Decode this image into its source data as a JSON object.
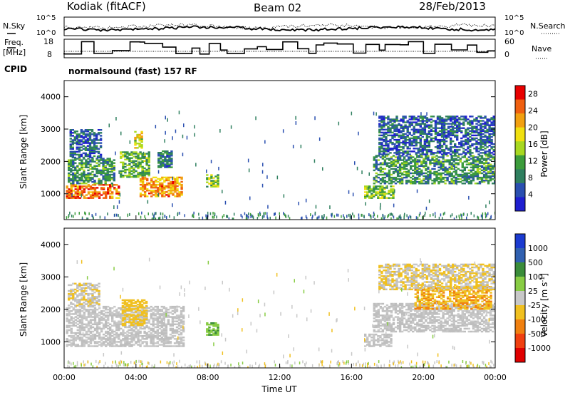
{
  "header": {
    "station": "Kodiak (fitACF)",
    "beam": "Beam 02",
    "date": "28/Feb/2013",
    "cpid_label": "CPID",
    "cpid_value": "normalsound (fast) 157 RF"
  },
  "status_panels": {
    "noise": {
      "left_label": "N.Sky",
      "right_label": "N.Search",
      "left_ticks": [
        "10^5",
        "10^0"
      ],
      "right_ticks": [
        "10^5",
        "10^0"
      ]
    },
    "freq": {
      "left_label_top": "Freq.",
      "left_label_unit": "[MHz]",
      "right_label": "Nave",
      "left_ticks": [
        "18",
        "8"
      ],
      "right_ticks": [
        "60",
        "0"
      ]
    }
  },
  "colors": {
    "power_scale": [
      "#1f1fd0",
      "#2a4fb0",
      "#2f7f5f",
      "#3c9c3c",
      "#a8d820",
      "#f0e010",
      "#f2a010",
      "#f06010",
      "#e80000"
    ],
    "velocity_scale": [
      "#1b3bd0",
      "#3060b0",
      "#3a8c3a",
      "#88cc44",
      "#c8c8c8",
      "#f0c020",
      "#f08010",
      "#f04010",
      "#e00000"
    ],
    "velocity_ground": "#bebebe"
  },
  "chart_data": [
    {
      "type": "heatmap",
      "title": "",
      "parameter": "Power",
      "ylabel": "Slant Range [km]",
      "xlabel": "",
      "ylim": [
        200,
        4500
      ],
      "yticks": [
        "1000",
        "2000",
        "3000",
        "4000"
      ],
      "colorbar": {
        "label": "Power [dB]",
        "ticks": [
          "4",
          "8",
          "12",
          "16",
          "20",
          "24",
          "28"
        ],
        "range": [
          0,
          30
        ]
      },
      "x_range_hours": [
        0,
        24
      ],
      "echo_regions": [
        {
          "t0": 0.1,
          "t1": 3.0,
          "r0": 850,
          "r1": 1300,
          "value": 24
        },
        {
          "t0": 0.2,
          "t1": 2.8,
          "r0": 1300,
          "r1": 2100,
          "value": 10
        },
        {
          "t0": 0.3,
          "t1": 2.0,
          "r0": 2100,
          "r1": 3000,
          "value": 6
        },
        {
          "t0": 3.1,
          "t1": 4.7,
          "r0": 1500,
          "r1": 2300,
          "value": 12
        },
        {
          "t0": 3.9,
          "t1": 4.3,
          "r0": 2400,
          "r1": 2900,
          "value": 18
        },
        {
          "t0": 4.2,
          "t1": 6.6,
          "r0": 900,
          "r1": 1500,
          "value": 22
        },
        {
          "t0": 5.2,
          "t1": 6.0,
          "r0": 1800,
          "r1": 2300,
          "value": 8
        },
        {
          "t0": 7.9,
          "t1": 8.5,
          "r0": 1200,
          "r1": 1600,
          "value": 14
        },
        {
          "t0": 16.7,
          "t1": 18.3,
          "r0": 850,
          "r1": 1250,
          "value": 14
        },
        {
          "t0": 17.2,
          "t1": 24.0,
          "r0": 1300,
          "r1": 2200,
          "value": 10
        },
        {
          "t0": 17.5,
          "t1": 24.0,
          "r0": 2200,
          "r1": 3400,
          "value": 6
        }
      ]
    },
    {
      "type": "heatmap",
      "title": "",
      "parameter": "Velocity",
      "ylabel": "Slant Range [km]",
      "xlabel": "Time UT",
      "ylim": [
        200,
        4500
      ],
      "yticks": [
        "1000",
        "2000",
        "3000",
        "4000"
      ],
      "xticks": [
        "00:00",
        "04:00",
        "08:00",
        "12:00",
        "16:00",
        "20:00",
        "00:00"
      ],
      "colorbar": {
        "label": "Velocity [m s-1]",
        "ticks": [
          "1000",
          "500",
          "100",
          "25",
          "-25",
          "-100",
          "-500",
          "-1000"
        ],
        "range": [
          -1000,
          1000
        ]
      },
      "x_range_hours": [
        0,
        24
      ],
      "echo_regions": [
        {
          "t0": 0.1,
          "t1": 6.6,
          "r0": 850,
          "r1": 2100,
          "value": 0
        },
        {
          "t0": 3.2,
          "t1": 4.6,
          "r0": 1500,
          "r1": 2300,
          "value": -200
        },
        {
          "t0": 0.2,
          "t1": 2.0,
          "r0": 2100,
          "r1": 2800,
          "value": -80
        },
        {
          "t0": 7.9,
          "t1": 8.5,
          "r0": 1200,
          "r1": 1600,
          "value": 300
        },
        {
          "t0": 16.7,
          "t1": 18.2,
          "r0": 850,
          "r1": 1250,
          "value": 0
        },
        {
          "t0": 17.2,
          "t1": 24.0,
          "r0": 1300,
          "r1": 2200,
          "value": 0
        },
        {
          "t0": 19.5,
          "t1": 23.8,
          "r0": 2000,
          "r1": 2700,
          "value": -300
        },
        {
          "t0": 17.5,
          "t1": 24.0,
          "r0": 2600,
          "r1": 3400,
          "value": -100
        }
      ]
    }
  ]
}
